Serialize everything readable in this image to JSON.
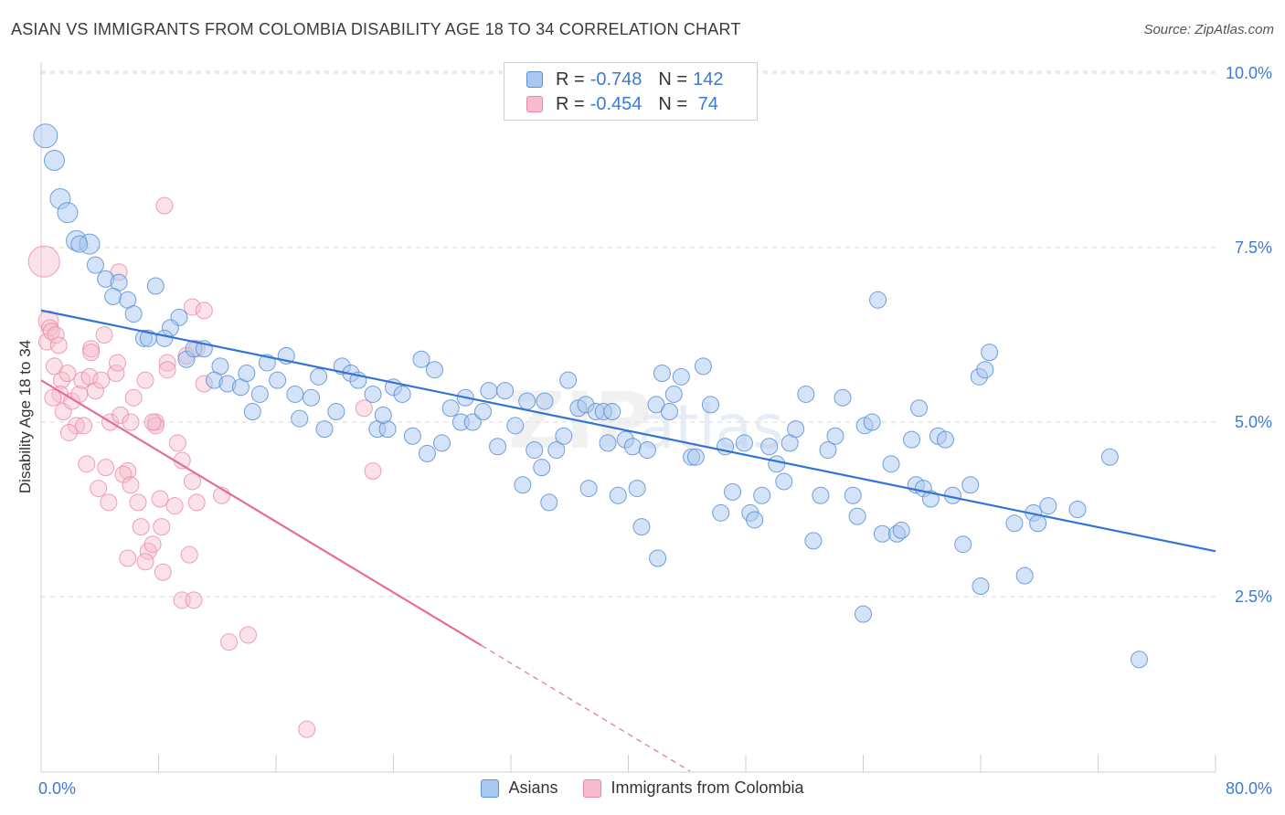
{
  "title": "ASIAN VS IMMIGRANTS FROM COLOMBIA DISABILITY AGE 18 TO 34 CORRELATION CHART",
  "source": "Source: ZipAtlas.com",
  "legend": {
    "asians": {
      "r_label": "R =",
      "r_value": "-0.748",
      "n_label": "N =",
      "n_value": "142"
    },
    "colombia": {
      "r_label": "R =",
      "r_value": "-0.454",
      "n_label": "N =",
      "n_value": " 74"
    }
  },
  "bottom_legend": {
    "asians": "Asians",
    "colombia": "Immigrants from Colombia"
  },
  "colors": {
    "asians_fill": "#a9c8f0",
    "asians_stroke": "#5b8fd6",
    "asians_line": "#3274d3",
    "colombia_fill": "#f6bccd",
    "colombia_stroke": "#e88aa7",
    "colombia_line": "#e4709a",
    "tick_label": "#3d7ad6",
    "grid": "#d8d8d8"
  },
  "chart_data": {
    "type": "scatter",
    "title": "ASIAN VS IMMIGRANTS FROM COLOMBIA DISABILITY AGE 18 TO 34 CORRELATION CHART",
    "xlabel": "",
    "ylabel": "Disability Age 18 to 34",
    "xlim": [
      0,
      80
    ],
    "ylim": [
      0,
      10.5
    ],
    "x_tick_labels": [
      "0.0%",
      "80.0%"
    ],
    "y_ticks": [
      2.5,
      5.0,
      7.5,
      10.0
    ],
    "y_tick_labels": [
      "2.5%",
      "5.0%",
      "7.5%",
      "10.0%"
    ],
    "grid": true,
    "legend_position": "top-center",
    "series": [
      {
        "name": "Asians",
        "r": -0.748,
        "n": 142,
        "trend": {
          "x": [
            0,
            80
          ],
          "y": [
            6.6,
            3.15
          ]
        },
        "points": [
          [
            0.3,
            9.1,
            14
          ],
          [
            0.9,
            8.75,
            12
          ],
          [
            1.3,
            8.2,
            12
          ],
          [
            1.8,
            8.0,
            12
          ],
          [
            2.4,
            7.6,
            12
          ],
          [
            3.3,
            7.55,
            12
          ],
          [
            2.6,
            7.55,
            10
          ],
          [
            3.7,
            7.25,
            10
          ],
          [
            4.4,
            7.05,
            10
          ],
          [
            5.3,
            7.0,
            10
          ],
          [
            4.9,
            6.8,
            10
          ],
          [
            5.9,
            6.75,
            10
          ],
          [
            6.3,
            6.55,
            10
          ],
          [
            7.8,
            6.95,
            10
          ],
          [
            9.4,
            6.5,
            10
          ],
          [
            8.8,
            6.35,
            10
          ],
          [
            7.0,
            6.2,
            10
          ],
          [
            8.4,
            6.2,
            10
          ],
          [
            7.3,
            6.2,
            10
          ],
          [
            9.9,
            5.9,
            10
          ],
          [
            10.4,
            6.05,
            10
          ],
          [
            11.1,
            6.05,
            10
          ],
          [
            12.2,
            5.8,
            10
          ],
          [
            11.8,
            5.6,
            10
          ],
          [
            12.7,
            5.55,
            10
          ],
          [
            13.6,
            5.5,
            10
          ],
          [
            14.0,
            5.7,
            10
          ],
          [
            14.9,
            5.4,
            10
          ],
          [
            15.4,
            5.85,
            10
          ],
          [
            14.4,
            5.15,
            10
          ],
          [
            16.1,
            5.6,
            10
          ],
          [
            16.7,
            5.95,
            10
          ],
          [
            17.3,
            5.4,
            10
          ],
          [
            17.6,
            5.05,
            10
          ],
          [
            18.4,
            5.35,
            10
          ],
          [
            18.9,
            5.65,
            10
          ],
          [
            19.3,
            4.9,
            10
          ],
          [
            20.1,
            5.15,
            10
          ],
          [
            20.5,
            5.8,
            10
          ],
          [
            21.1,
            5.7,
            10
          ],
          [
            21.6,
            5.6,
            10
          ],
          [
            22.6,
            5.4,
            10
          ],
          [
            22.9,
            4.9,
            10
          ],
          [
            23.6,
            4.9,
            10
          ],
          [
            24.0,
            5.5,
            10
          ],
          [
            23.3,
            5.1,
            10
          ],
          [
            24.6,
            5.4,
            10
          ],
          [
            25.3,
            4.8,
            10
          ],
          [
            25.9,
            5.9,
            10
          ],
          [
            26.3,
            4.55,
            10
          ],
          [
            26.8,
            5.75,
            10
          ],
          [
            27.3,
            4.7,
            10
          ],
          [
            27.9,
            5.2,
            10
          ],
          [
            28.6,
            5.0,
            10
          ],
          [
            28.9,
            5.35,
            10
          ],
          [
            29.4,
            5.0,
            10
          ],
          [
            30.1,
            5.15,
            10
          ],
          [
            30.5,
            5.45,
            10
          ],
          [
            31.1,
            4.65,
            10
          ],
          [
            31.6,
            5.45,
            10
          ],
          [
            32.3,
            4.95,
            10
          ],
          [
            32.8,
            4.1,
            10
          ],
          [
            33.1,
            5.3,
            10
          ],
          [
            33.6,
            4.6,
            10
          ],
          [
            34.3,
            5.3,
            10
          ],
          [
            34.6,
            3.85,
            10
          ],
          [
            34.1,
            4.35,
            10
          ],
          [
            35.1,
            4.6,
            10
          ],
          [
            35.6,
            4.8,
            10
          ],
          [
            35.9,
            5.6,
            10
          ],
          [
            36.6,
            5.2,
            10
          ],
          [
            37.1,
            5.25,
            10
          ],
          [
            37.3,
            4.05,
            10
          ],
          [
            37.8,
            5.15,
            10
          ],
          [
            38.3,
            5.15,
            10
          ],
          [
            38.6,
            4.7,
            10
          ],
          [
            38.9,
            5.15,
            10
          ],
          [
            39.3,
            3.95,
            10
          ],
          [
            39.8,
            4.75,
            10
          ],
          [
            40.3,
            4.65,
            10
          ],
          [
            40.6,
            4.05,
            10
          ],
          [
            40.9,
            3.5,
            10
          ],
          [
            41.3,
            4.6,
            10
          ],
          [
            41.9,
            5.25,
            10
          ],
          [
            42.3,
            5.7,
            10
          ],
          [
            42.8,
            5.15,
            10
          ],
          [
            43.1,
            5.4,
            10
          ],
          [
            43.6,
            5.65,
            10
          ],
          [
            44.3,
            4.5,
            10
          ],
          [
            44.6,
            4.5,
            10
          ],
          [
            45.1,
            5.8,
            10
          ],
          [
            45.6,
            5.25,
            10
          ],
          [
            46.3,
            3.7,
            10
          ],
          [
            46.6,
            4.65,
            10
          ],
          [
            47.1,
            4.0,
            10
          ],
          [
            47.9,
            4.7,
            10
          ],
          [
            48.3,
            3.7,
            10
          ],
          [
            48.6,
            3.6,
            10
          ],
          [
            49.1,
            3.95,
            10
          ],
          [
            49.6,
            4.65,
            10
          ],
          [
            50.1,
            4.4,
            10
          ],
          [
            50.6,
            4.15,
            10
          ],
          [
            51.0,
            4.7,
            10
          ],
          [
            51.4,
            4.9,
            10
          ],
          [
            52.1,
            5.4,
            10
          ],
          [
            52.6,
            3.3,
            10
          ],
          [
            53.1,
            3.95,
            10
          ],
          [
            53.6,
            4.6,
            10
          ],
          [
            54.1,
            4.8,
            10
          ],
          [
            54.6,
            5.35,
            10
          ],
          [
            55.3,
            3.95,
            10
          ],
          [
            55.6,
            3.65,
            10
          ],
          [
            56.1,
            4.95,
            10
          ],
          [
            56.6,
            5.0,
            10
          ],
          [
            57.3,
            3.4,
            10
          ],
          [
            57.9,
            4.4,
            10
          ],
          [
            58.3,
            3.4,
            10
          ],
          [
            58.6,
            3.45,
            10
          ],
          [
            59.3,
            4.75,
            10
          ],
          [
            59.6,
            4.1,
            10
          ],
          [
            60.1,
            4.05,
            10
          ],
          [
            60.6,
            3.9,
            10
          ],
          [
            61.1,
            4.8,
            10
          ],
          [
            62.1,
            3.95,
            10
          ],
          [
            62.8,
            3.25,
            10
          ],
          [
            63.3,
            4.1,
            10
          ],
          [
            63.9,
            5.65,
            10
          ],
          [
            64.3,
            5.75,
            10
          ],
          [
            64.6,
            6.0,
            10
          ],
          [
            66.3,
            3.55,
            10
          ],
          [
            67.6,
            3.7,
            10
          ],
          [
            67.9,
            3.55,
            10
          ],
          [
            68.6,
            3.8,
            10
          ],
          [
            70.6,
            3.75,
            10
          ],
          [
            72.8,
            4.5,
            10
          ],
          [
            56.0,
            2.25,
            10
          ],
          [
            57.0,
            6.75,
            10
          ],
          [
            42.0,
            3.05,
            10
          ],
          [
            64.0,
            2.65,
            10
          ],
          [
            67.0,
            2.8,
            10
          ],
          [
            74.8,
            1.6,
            10
          ],
          [
            59.8,
            5.2,
            10
          ],
          [
            61.6,
            4.75,
            10
          ]
        ]
      },
      {
        "name": "Immigrants from Colombia",
        "r": -0.454,
        "n": 74,
        "trend": {
          "x": [
            0,
            30
          ],
          "y": [
            5.6,
            1.8
          ]
        },
        "trend_dashed": {
          "x": [
            30,
            44.2
          ],
          "y": [
            1.8,
            0.0
          ]
        },
        "points": [
          [
            0.2,
            7.3,
            18
          ],
          [
            0.5,
            6.45,
            12
          ],
          [
            0.6,
            6.35,
            10
          ],
          [
            0.4,
            6.15,
            10
          ],
          [
            0.7,
            6.3,
            10
          ],
          [
            1.0,
            6.25,
            10
          ],
          [
            1.2,
            6.1,
            10
          ],
          [
            0.9,
            5.8,
            10
          ],
          [
            1.4,
            5.6,
            10
          ],
          [
            1.8,
            5.7,
            10
          ],
          [
            1.3,
            5.4,
            10
          ],
          [
            0.8,
            5.35,
            10
          ],
          [
            1.5,
            5.15,
            10
          ],
          [
            2.1,
            5.3,
            10
          ],
          [
            2.6,
            5.4,
            10
          ],
          [
            2.8,
            5.6,
            10
          ],
          [
            3.3,
            5.65,
            10
          ],
          [
            3.7,
            5.45,
            10
          ],
          [
            3.4,
            6.05,
            10
          ],
          [
            4.3,
            6.25,
            10
          ],
          [
            4.1,
            5.6,
            10
          ],
          [
            5.1,
            5.7,
            10
          ],
          [
            4.7,
            5.0,
            10
          ],
          [
            2.4,
            4.95,
            10
          ],
          [
            1.9,
            4.85,
            10
          ],
          [
            2.9,
            4.95,
            10
          ],
          [
            3.1,
            4.4,
            10
          ],
          [
            4.4,
            4.35,
            10
          ],
          [
            5.4,
            5.1,
            10
          ],
          [
            6.1,
            5.0,
            10
          ],
          [
            6.3,
            5.35,
            10
          ],
          [
            7.1,
            5.6,
            10
          ],
          [
            7.8,
            5.0,
            10
          ],
          [
            5.9,
            4.3,
            10
          ],
          [
            5.6,
            4.25,
            10
          ],
          [
            6.1,
            4.1,
            10
          ],
          [
            3.9,
            4.05,
            10
          ],
          [
            4.6,
            3.85,
            10
          ],
          [
            6.6,
            3.85,
            10
          ],
          [
            8.1,
            3.9,
            10
          ],
          [
            9.1,
            3.8,
            10
          ],
          [
            9.6,
            4.45,
            10
          ],
          [
            9.3,
            4.7,
            10
          ],
          [
            10.3,
            4.15,
            10
          ],
          [
            10.6,
            3.85,
            10
          ],
          [
            12.3,
            3.95,
            10
          ],
          [
            6.8,
            3.5,
            10
          ],
          [
            8.2,
            3.5,
            10
          ],
          [
            7.3,
            3.15,
            10
          ],
          [
            7.6,
            3.25,
            10
          ],
          [
            5.9,
            3.05,
            10
          ],
          [
            7.1,
            3.0,
            10
          ],
          [
            8.3,
            2.85,
            10
          ],
          [
            10.1,
            3.1,
            10
          ],
          [
            9.6,
            2.45,
            10
          ],
          [
            10.4,
            2.45,
            10
          ],
          [
            12.8,
            1.85,
            10
          ],
          [
            14.1,
            1.95,
            10
          ],
          [
            8.4,
            8.1,
            10
          ],
          [
            10.3,
            6.65,
            10
          ],
          [
            11.1,
            6.6,
            10
          ],
          [
            5.2,
            5.85,
            10
          ],
          [
            8.6,
            5.85,
            10
          ],
          [
            8.6,
            5.75,
            10
          ],
          [
            10.6,
            6.05,
            10
          ],
          [
            11.1,
            5.55,
            10
          ],
          [
            5.3,
            7.15,
            10
          ],
          [
            9.9,
            5.95,
            10
          ],
          [
            7.8,
            4.95,
            10
          ],
          [
            7.6,
            5.0,
            10
          ],
          [
            22.0,
            5.2,
            10
          ],
          [
            22.6,
            4.3,
            10
          ],
          [
            18.1,
            0.6,
            10
          ],
          [
            3.4,
            6.0,
            10
          ]
        ]
      }
    ]
  }
}
